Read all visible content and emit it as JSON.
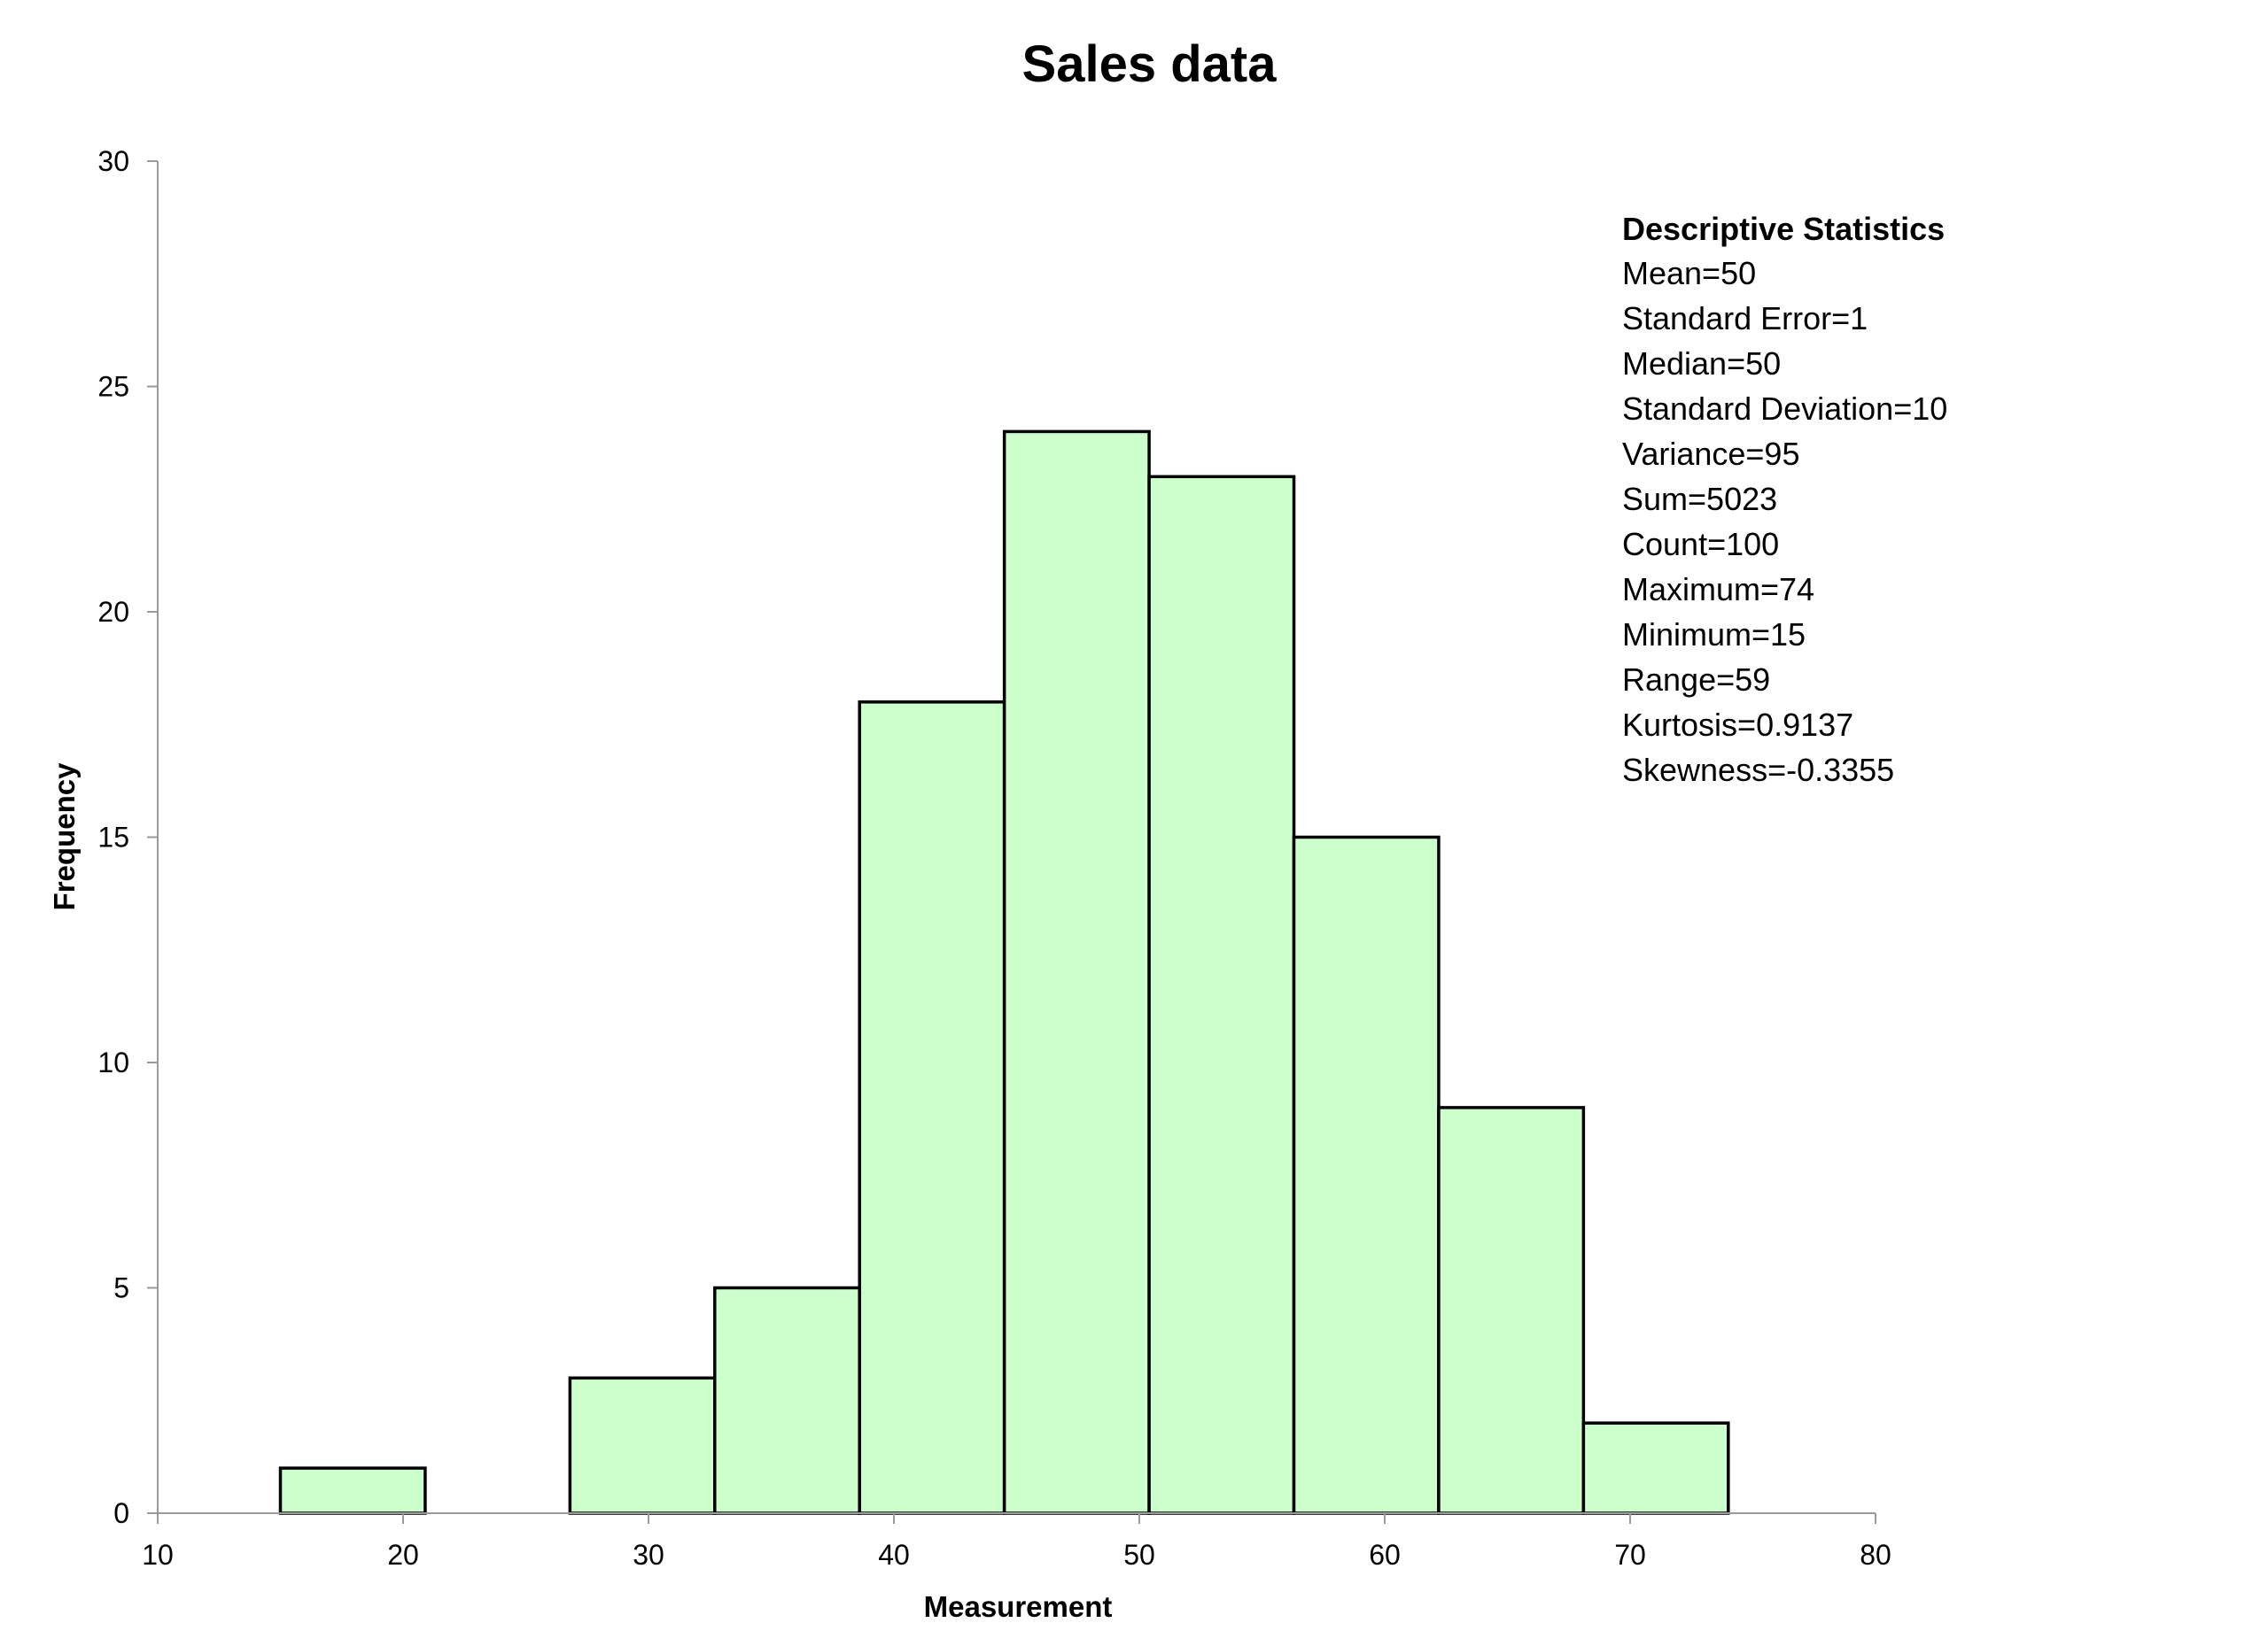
{
  "chart_data": {
    "type": "bar",
    "subtype": "histogram",
    "title": "Sales data",
    "xlabel": "Measurement",
    "ylabel": "Frequency",
    "xlim": [
      10,
      80
    ],
    "ylim": [
      0,
      30
    ],
    "x_ticks": [
      "10",
      "20",
      "30",
      "40",
      "50",
      "60",
      "70",
      "80"
    ],
    "y_ticks": [
      "0",
      "5",
      "10",
      "15",
      "20",
      "25",
      "30"
    ],
    "bin_edges": [
      15,
      20.9,
      26.8,
      32.7,
      38.6,
      44.5,
      50.4,
      56.3,
      62.2,
      68.1,
      74
    ],
    "values": [
      1,
      0,
      3,
      5,
      18,
      24,
      23,
      15,
      9,
      2
    ],
    "bar_color": "#ccffcc",
    "bar_edge_color": "#000000",
    "grid": false,
    "legend": "none"
  },
  "stats": {
    "heading": "Descriptive Statistics",
    "lines": [
      "Mean=50",
      "Standard Error=1",
      "Median=50",
      "Standard Deviation=10",
      "Variance=95",
      "Sum=5023",
      "Count=100",
      "Maximum=74",
      "Minimum=15",
      "Range=59",
      "Kurtosis=0.9137",
      "Skewness=-0.3355"
    ]
  }
}
